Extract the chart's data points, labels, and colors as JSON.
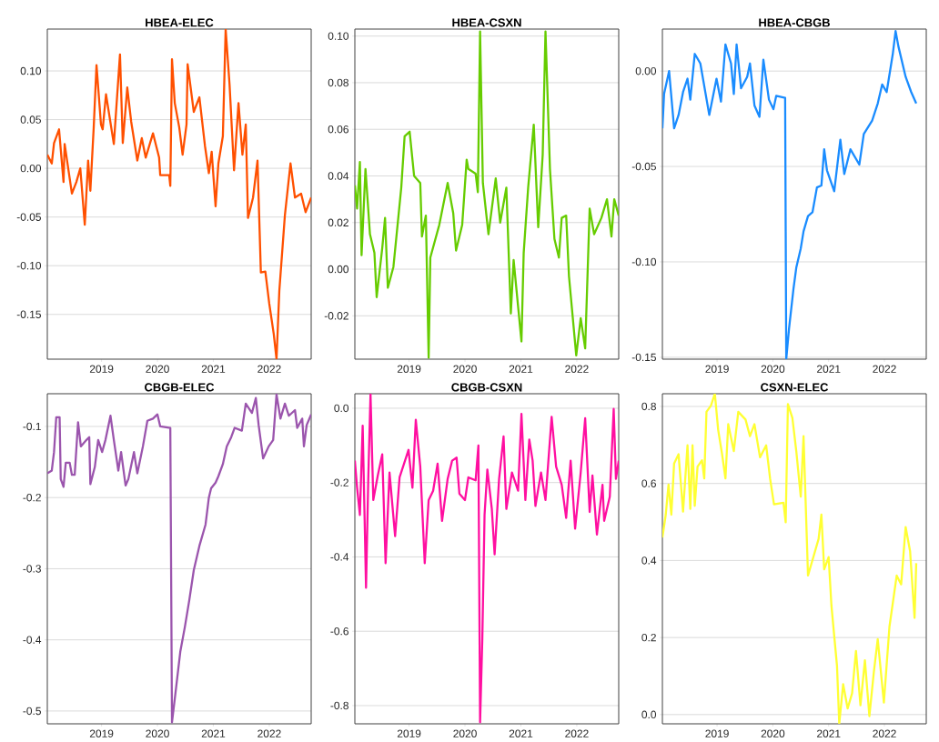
{
  "chart_data": [
    {
      "type": "line",
      "title": "HBEA-ELEC",
      "grid": "y",
      "xlim": [
        2018.03,
        2022.75
      ],
      "xticks": [
        2019,
        2020,
        2021,
        2022
      ],
      "ylim": [
        -0.196,
        0.143
      ],
      "yticks": [
        {
          "value": -0.15,
          "label": "-0.15"
        },
        {
          "value": -0.1,
          "label": "-0.10"
        },
        {
          "value": -0.05,
          "label": "-0.05"
        },
        {
          "value": 0,
          "label": "0.00"
        },
        {
          "value": 0.05,
          "label": "0.05"
        },
        {
          "value": 0.1,
          "label": "0.10"
        }
      ],
      "x": [
        2018.03,
        2018.11,
        2018.15,
        2018.24,
        2018.32,
        2018.34,
        2018.47,
        2018.55,
        2018.62,
        2018.7,
        2018.76,
        2018.8,
        2018.86,
        2018.91,
        2018.99,
        2019.02,
        2019.08,
        2019.22,
        2019.33,
        2019.38,
        2019.46,
        2019.53,
        2019.64,
        2019.72,
        2019.79,
        2019.92,
        2020.03,
        2020.05,
        2020.21,
        2020.23,
        2020.26,
        2020.31,
        2020.39,
        2020.45,
        2020.52,
        2020.54,
        2020.65,
        2020.75,
        2020.85,
        2020.92,
        2020.97,
        2021.04,
        2021.09,
        2021.17,
        2021.22,
        2021.29,
        2021.37,
        2021.45,
        2021.52,
        2021.58,
        2021.62,
        2021.71,
        2021.79,
        2021.85,
        2021.93,
        2022.0,
        2022.08,
        2022.13,
        2022.18,
        2022.28,
        2022.38,
        2022.46,
        2022.57,
        2022.65,
        2022.75
      ],
      "series": [
        {
          "color": "#ff5000",
          "values": [
            0.014,
            0.005,
            0.026,
            0.04,
            -0.014,
            0.025,
            -0.026,
            -0.014,
            0.0,
            -0.058,
            0.008,
            -0.023,
            0.042,
            0.106,
            0.045,
            0.04,
            0.076,
            0.025,
            0.117,
            0.026,
            0.083,
            0.048,
            0.008,
            0.031,
            0.011,
            0.036,
            0.011,
            -0.007,
            -0.007,
            -0.018,
            0.112,
            0.067,
            0.042,
            0.014,
            0.045,
            0.107,
            0.058,
            0.073,
            0.023,
            -0.005,
            0.017,
            -0.039,
            0.005,
            0.033,
            0.143,
            0.086,
            -0.002,
            0.067,
            0.014,
            0.045,
            -0.051,
            -0.03,
            0.008,
            -0.107,
            -0.106,
            -0.139,
            -0.17,
            -0.196,
            -0.126,
            -0.048,
            0.005,
            -0.03,
            -0.026,
            -0.045,
            -0.03
          ]
        }
      ]
    },
    {
      "type": "line",
      "title": "HBEA-CSXN",
      "grid": "y",
      "xlim": [
        2018.03,
        2022.75
      ],
      "xticks": [
        2019,
        2020,
        2021,
        2022
      ],
      "ylim": [
        -0.0386,
        0.103
      ],
      "yticks": [
        {
          "value": -0.02,
          "label": "-0.02"
        },
        {
          "value": 0,
          "label": "0.00"
        },
        {
          "value": 0.02,
          "label": "0.02"
        },
        {
          "value": 0.04,
          "label": "0.04"
        },
        {
          "value": 0.06,
          "label": "0.06"
        },
        {
          "value": 0.08,
          "label": "0.08"
        },
        {
          "value": 0.1,
          "label": "0.10"
        }
      ],
      "x": [
        2018.03,
        2018.07,
        2018.12,
        2018.15,
        2018.22,
        2018.3,
        2018.38,
        2018.42,
        2018.52,
        2018.57,
        2018.62,
        2018.72,
        2018.86,
        2018.92,
        2019.01,
        2019.09,
        2019.2,
        2019.23,
        2019.3,
        2019.35,
        2019.38,
        2019.54,
        2019.69,
        2019.79,
        2019.84,
        2019.95,
        2020.03,
        2020.06,
        2020.19,
        2020.23,
        2020.27,
        2020.32,
        2020.42,
        2020.55,
        2020.63,
        2020.74,
        2020.82,
        2020.87,
        2021.01,
        2021.05,
        2021.13,
        2021.23,
        2021.31,
        2021.39,
        2021.44,
        2021.52,
        2021.6,
        2021.68,
        2021.73,
        2021.81,
        2021.86,
        2021.99,
        2022.07,
        2022.15,
        2022.23,
        2022.31,
        2022.44,
        2022.54,
        2022.62,
        2022.67,
        2022.75
      ],
      "series": [
        {
          "color": "#66cc00",
          "values": [
            0.036,
            0.026,
            0.046,
            0.006,
            0.043,
            0.015,
            0.007,
            -0.012,
            0.009,
            0.022,
            -0.008,
            0.001,
            0.035,
            0.057,
            0.059,
            0.04,
            0.037,
            0.014,
            0.023,
            -0.038,
            0.005,
            0.019,
            0.037,
            0.024,
            0.008,
            0.019,
            0.047,
            0.043,
            0.041,
            0.033,
            0.102,
            0.037,
            0.015,
            0.039,
            0.02,
            0.035,
            -0.019,
            0.004,
            -0.031,
            0.007,
            0.035,
            0.062,
            0.018,
            0.049,
            0.102,
            0.043,
            0.013,
            0.005,
            0.022,
            0.023,
            -0.003,
            -0.037,
            -0.021,
            -0.034,
            0.026,
            0.015,
            0.022,
            0.03,
            0.014,
            0.03,
            0.023
          ]
        }
      ]
    },
    {
      "type": "line",
      "title": "HBEA-CBGB",
      "grid": "y",
      "xlim": [
        2018.02,
        2022.75
      ],
      "xticks": [
        2019,
        2020,
        2021,
        2022
      ],
      "ylim": [
        -0.151,
        0.022
      ],
      "yticks": [
        {
          "value": -0.15,
          "label": "-0.15"
        },
        {
          "value": -0.1,
          "label": "-0.10"
        },
        {
          "value": -0.05,
          "label": "-0.05"
        },
        {
          "value": 0,
          "label": "0.00"
        }
      ],
      "x": [
        2018.02,
        2018.05,
        2018.14,
        2018.23,
        2018.31,
        2018.39,
        2018.47,
        2018.52,
        2018.6,
        2018.7,
        2018.86,
        2018.99,
        2019.07,
        2019.15,
        2019.25,
        2019.3,
        2019.35,
        2019.43,
        2019.54,
        2019.59,
        2019.67,
        2019.76,
        2019.83,
        2019.93,
        2020.01,
        2020.06,
        2020.22,
        2020.24,
        2020.29,
        2020.37,
        2020.42,
        2020.5,
        2020.55,
        2020.63,
        2020.71,
        2020.79,
        2020.87,
        2020.92,
        2020.97,
        2021.1,
        2021.21,
        2021.28,
        2021.39,
        2021.55,
        2021.63,
        2021.78,
        2021.88,
        2021.96,
        2022.04,
        2022.15,
        2022.2,
        2022.25,
        2022.38,
        2022.48,
        2022.57
      ],
      "series": [
        {
          "color": "#1a8cff",
          "values": [
            -0.03,
            -0.012,
            0.0,
            -0.03,
            -0.023,
            -0.011,
            -0.004,
            -0.015,
            0.009,
            0.004,
            -0.023,
            -0.004,
            -0.016,
            0.014,
            0.004,
            -0.012,
            0.014,
            -0.009,
            -0.003,
            0.004,
            -0.018,
            -0.024,
            0.006,
            -0.015,
            -0.02,
            -0.013,
            -0.014,
            -0.151,
            -0.135,
            -0.114,
            -0.103,
            -0.093,
            -0.084,
            -0.076,
            -0.074,
            -0.061,
            -0.06,
            -0.041,
            -0.052,
            -0.063,
            -0.036,
            -0.054,
            -0.041,
            -0.049,
            -0.033,
            -0.026,
            -0.017,
            -0.007,
            -0.011,
            0.009,
            0.021,
            0.013,
            -0.003,
            -0.011,
            -0.017
          ]
        }
      ]
    },
    {
      "type": "line",
      "title": "CBGB-ELEC",
      "grid": "y",
      "xlim": [
        2018.03,
        2022.75
      ],
      "xticks": [
        2019,
        2020,
        2021,
        2022
      ],
      "ylim": [
        -0.518,
        -0.054
      ],
      "yticks": [
        {
          "value": -0.5,
          "label": "-0.5"
        },
        {
          "value": -0.4,
          "label": "-0.4"
        },
        {
          "value": -0.3,
          "label": "-0.3"
        },
        {
          "value": -0.2,
          "label": "-0.2"
        },
        {
          "value": -0.1,
          "label": "-0.1"
        }
      ],
      "x": [
        2018.03,
        2018.11,
        2018.15,
        2018.19,
        2018.25,
        2018.27,
        2018.32,
        2018.36,
        2018.43,
        2018.47,
        2018.52,
        2018.58,
        2018.63,
        2018.73,
        2018.78,
        2018.8,
        2018.88,
        2018.94,
        2019.01,
        2019.07,
        2019.16,
        2019.22,
        2019.3,
        2019.35,
        2019.43,
        2019.48,
        2019.58,
        2019.64,
        2019.74,
        2019.82,
        2019.92,
        2020.0,
        2020.05,
        2020.23,
        2020.26,
        2020.34,
        2020.41,
        2020.49,
        2020.57,
        2020.65,
        2020.75,
        2020.86,
        2020.92,
        2020.96,
        2021.04,
        2021.09,
        2021.17,
        2021.24,
        2021.32,
        2021.38,
        2021.51,
        2021.58,
        2021.69,
        2021.76,
        2021.81,
        2021.89,
        2021.99,
        2022.07,
        2022.13,
        2022.2,
        2022.28,
        2022.35,
        2022.46,
        2022.5,
        2022.59,
        2022.62,
        2022.67,
        2022.75
      ],
      "series": [
        {
          "color": "#9b55ad",
          "values": [
            -0.166,
            -0.162,
            -0.136,
            -0.087,
            -0.087,
            -0.174,
            -0.185,
            -0.151,
            -0.151,
            -0.168,
            -0.168,
            -0.094,
            -0.128,
            -0.119,
            -0.115,
            -0.181,
            -0.157,
            -0.119,
            -0.136,
            -0.119,
            -0.085,
            -0.119,
            -0.162,
            -0.136,
            -0.183,
            -0.174,
            -0.136,
            -0.166,
            -0.128,
            -0.092,
            -0.089,
            -0.083,
            -0.1,
            -0.102,
            -0.516,
            -0.463,
            -0.416,
            -0.382,
            -0.344,
            -0.302,
            -0.268,
            -0.238,
            -0.2,
            -0.187,
            -0.179,
            -0.17,
            -0.153,
            -0.128,
            -0.115,
            -0.102,
            -0.106,
            -0.068,
            -0.081,
            -0.06,
            -0.098,
            -0.145,
            -0.128,
            -0.119,
            -0.055,
            -0.089,
            -0.068,
            -0.085,
            -0.077,
            -0.102,
            -0.089,
            -0.128,
            -0.098,
            -0.083
          ]
        }
      ]
    },
    {
      "type": "line",
      "title": "CBGB-CSXN",
      "grid": "y",
      "xlim": [
        2018.03,
        2022.75
      ],
      "xticks": [
        2019,
        2020,
        2021,
        2022
      ],
      "ylim": [
        -0.849,
        0.039
      ],
      "yticks": [
        {
          "value": -0.8,
          "label": "-0.8"
        },
        {
          "value": -0.6,
          "label": "-0.6"
        },
        {
          "value": -0.4,
          "label": "-0.4"
        },
        {
          "value": -0.2,
          "label": "-0.2"
        },
        {
          "value": 0,
          "label": "0.0"
        }
      ],
      "x": [
        2018.03,
        2018.07,
        2018.12,
        2018.17,
        2018.23,
        2018.27,
        2018.31,
        2018.36,
        2018.44,
        2018.52,
        2018.58,
        2018.65,
        2018.75,
        2018.83,
        2018.91,
        2018.99,
        2019.06,
        2019.12,
        2019.2,
        2019.28,
        2019.35,
        2019.43,
        2019.51,
        2019.59,
        2019.69,
        2019.77,
        2019.85,
        2019.9,
        2020.0,
        2020.06,
        2020.19,
        2020.24,
        2020.27,
        2020.31,
        2020.35,
        2020.4,
        2020.48,
        2020.53,
        2020.61,
        2020.69,
        2020.74,
        2020.84,
        2020.95,
        2021.01,
        2021.08,
        2021.15,
        2021.21,
        2021.26,
        2021.36,
        2021.44,
        2021.55,
        2021.63,
        2021.73,
        2021.81,
        2021.89,
        2021.97,
        2022.07,
        2022.15,
        2022.23,
        2022.28,
        2022.36,
        2022.46,
        2022.49,
        2022.59,
        2022.66,
        2022.7,
        2022.75
      ],
      "series": [
        {
          "color": "#ff0fa0",
          "values": [
            -0.141,
            -0.214,
            -0.287,
            -0.047,
            -0.483,
            -0.19,
            0.038,
            -0.247,
            -0.181,
            -0.124,
            -0.417,
            -0.173,
            -0.344,
            -0.186,
            -0.149,
            -0.112,
            -0.214,
            -0.031,
            -0.157,
            -0.417,
            -0.247,
            -0.222,
            -0.149,
            -0.303,
            -0.19,
            -0.141,
            -0.133,
            -0.23,
            -0.247,
            -0.186,
            -0.194,
            -0.1,
            -0.845,
            -0.621,
            -0.287,
            -0.165,
            -0.271,
            -0.393,
            -0.19,
            -0.076,
            -0.271,
            -0.173,
            -0.222,
            -0.015,
            -0.247,
            -0.084,
            -0.141,
            -0.263,
            -0.173,
            -0.247,
            -0.023,
            -0.157,
            -0.206,
            -0.295,
            -0.141,
            -0.324,
            -0.173,
            -0.027,
            -0.279,
            -0.181,
            -0.34,
            -0.206,
            -0.303,
            -0.238,
            -0.002,
            -0.19,
            -0.141
          ]
        }
      ]
    },
    {
      "type": "line",
      "title": "CSXN-ELEC",
      "grid": "y",
      "xlim": [
        2018.02,
        2022.75
      ],
      "xticks": [
        2019,
        2020,
        2021,
        2022
      ],
      "ylim": [
        -0.024,
        0.833
      ],
      "yticks": [
        {
          "value": 0,
          "label": "0.0"
        },
        {
          "value": 0.2,
          "label": "0.2"
        },
        {
          "value": 0.4,
          "label": "0.4"
        },
        {
          "value": 0.6,
          "label": "0.6"
        },
        {
          "value": 0.8,
          "label": "0.8"
        }
      ],
      "x": [
        2018.02,
        2018.08,
        2018.13,
        2018.18,
        2018.23,
        2018.31,
        2018.39,
        2018.47,
        2018.52,
        2018.56,
        2018.6,
        2018.65,
        2018.73,
        2018.77,
        2018.81,
        2018.89,
        2018.96,
        2019.02,
        2019.09,
        2019.15,
        2019.2,
        2019.3,
        2019.38,
        2019.51,
        2019.59,
        2019.67,
        2019.77,
        2019.88,
        2019.95,
        2020.02,
        2020.19,
        2020.23,
        2020.27,
        2020.35,
        2020.42,
        2020.5,
        2020.55,
        2020.63,
        2020.71,
        2020.82,
        2020.87,
        2020.92,
        2021.0,
        2021.05,
        2021.1,
        2021.15,
        2021.19,
        2021.26,
        2021.34,
        2021.42,
        2021.49,
        2021.57,
        2021.65,
        2021.73,
        2021.81,
        2021.88,
        2021.99,
        2022.09,
        2022.22,
        2022.3,
        2022.38,
        2022.46,
        2022.54,
        2022.57
      ],
      "series": [
        {
          "color": "#ffff33",
          "values": [
            0.46,
            0.519,
            0.597,
            0.519,
            0.652,
            0.676,
            0.527,
            0.699,
            0.534,
            0.699,
            0.542,
            0.644,
            0.66,
            0.613,
            0.786,
            0.802,
            0.833,
            0.739,
            0.676,
            0.613,
            0.754,
            0.684,
            0.786,
            0.766,
            0.723,
            0.754,
            0.668,
            0.699,
            0.613,
            0.546,
            0.55,
            0.499,
            0.806,
            0.77,
            0.684,
            0.566,
            0.723,
            0.361,
            0.401,
            0.456,
            0.519,
            0.377,
            0.409,
            0.283,
            0.204,
            0.126,
            -0.024,
            0.079,
            0.016,
            0.055,
            0.165,
            0.024,
            0.141,
            -0.004,
            0.11,
            0.196,
            0.031,
            0.228,
            0.361,
            0.338,
            0.487,
            0.424,
            0.251,
            0.393
          ]
        }
      ]
    }
  ]
}
